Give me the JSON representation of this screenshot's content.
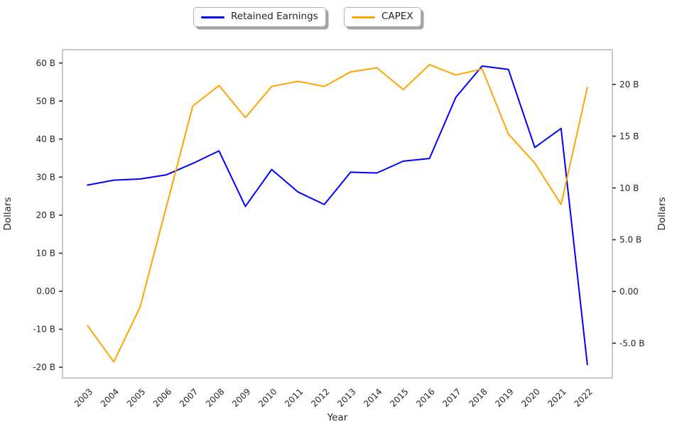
{
  "legend": {
    "entries": [
      {
        "label": "Retained Earnings",
        "color": "#0000ff"
      },
      {
        "label": "CAPEX",
        "color": "#ffa500"
      }
    ]
  },
  "chart_data": {
    "type": "line",
    "x": [
      "2003",
      "2004",
      "2005",
      "2006",
      "2007",
      "2008",
      "2009",
      "2010",
      "2011",
      "2012",
      "2013",
      "2014",
      "2015",
      "2016",
      "2017",
      "2018",
      "2019",
      "2020",
      "2021",
      "2022"
    ],
    "xlabel": "Year",
    "series": [
      {
        "name": "Retained Earnings",
        "axis": "left",
        "color": "#0000ff",
        "values": [
          27.9,
          29.2,
          29.5,
          30.6,
          33.6,
          36.9,
          22.3,
          32.0,
          26.1,
          22.8,
          31.3,
          31.1,
          34.2,
          34.9,
          51.0,
          59.2,
          58.3,
          37.8,
          42.8,
          -19.3
        ]
      },
      {
        "name": "CAPEX",
        "axis": "right",
        "color": "#ffa500",
        "values": [
          -3.3,
          -6.8,
          -1.5,
          8.2,
          17.9,
          19.9,
          16.8,
          19.8,
          20.3,
          19.8,
          21.2,
          21.6,
          19.5,
          21.9,
          20.9,
          21.5,
          15.2,
          12.4,
          8.4,
          19.7
        ]
      }
    ],
    "axes": {
      "left": {
        "label": "Dollars",
        "unit": "B",
        "ylim": [
          -22.8,
          63.5
        ],
        "ticks": [
          {
            "value": 60,
            "label": "60 B"
          },
          {
            "value": 50,
            "label": "50 B"
          },
          {
            "value": 40,
            "label": "40 B"
          },
          {
            "value": 30,
            "label": "30 B"
          },
          {
            "value": 20,
            "label": "20 B"
          },
          {
            "value": 10,
            "label": "10 B"
          },
          {
            "value": 0,
            "label": "0.00"
          },
          {
            "value": -10,
            "label": "-10 B"
          },
          {
            "value": -20,
            "label": "-20 B"
          }
        ]
      },
      "right": {
        "label": "Dollars",
        "unit": "B",
        "ylim": [
          -8.35,
          23.35
        ],
        "ticks": [
          {
            "value": 20,
            "label": "20 B"
          },
          {
            "value": 15,
            "label": "15 B"
          },
          {
            "value": 10,
            "label": "10 B"
          },
          {
            "value": 5,
            "label": "5.0 B"
          },
          {
            "value": 0,
            "label": "0.00"
          },
          {
            "value": -5,
            "label": "-5.0 B"
          }
        ]
      }
    },
    "grid": false,
    "legend_position": "top-center-outside"
  },
  "styles": {
    "background": "#ffffff",
    "spine_color": "#c9c9c9",
    "tick_mark_color": "#333333",
    "text_color": "#262626"
  }
}
